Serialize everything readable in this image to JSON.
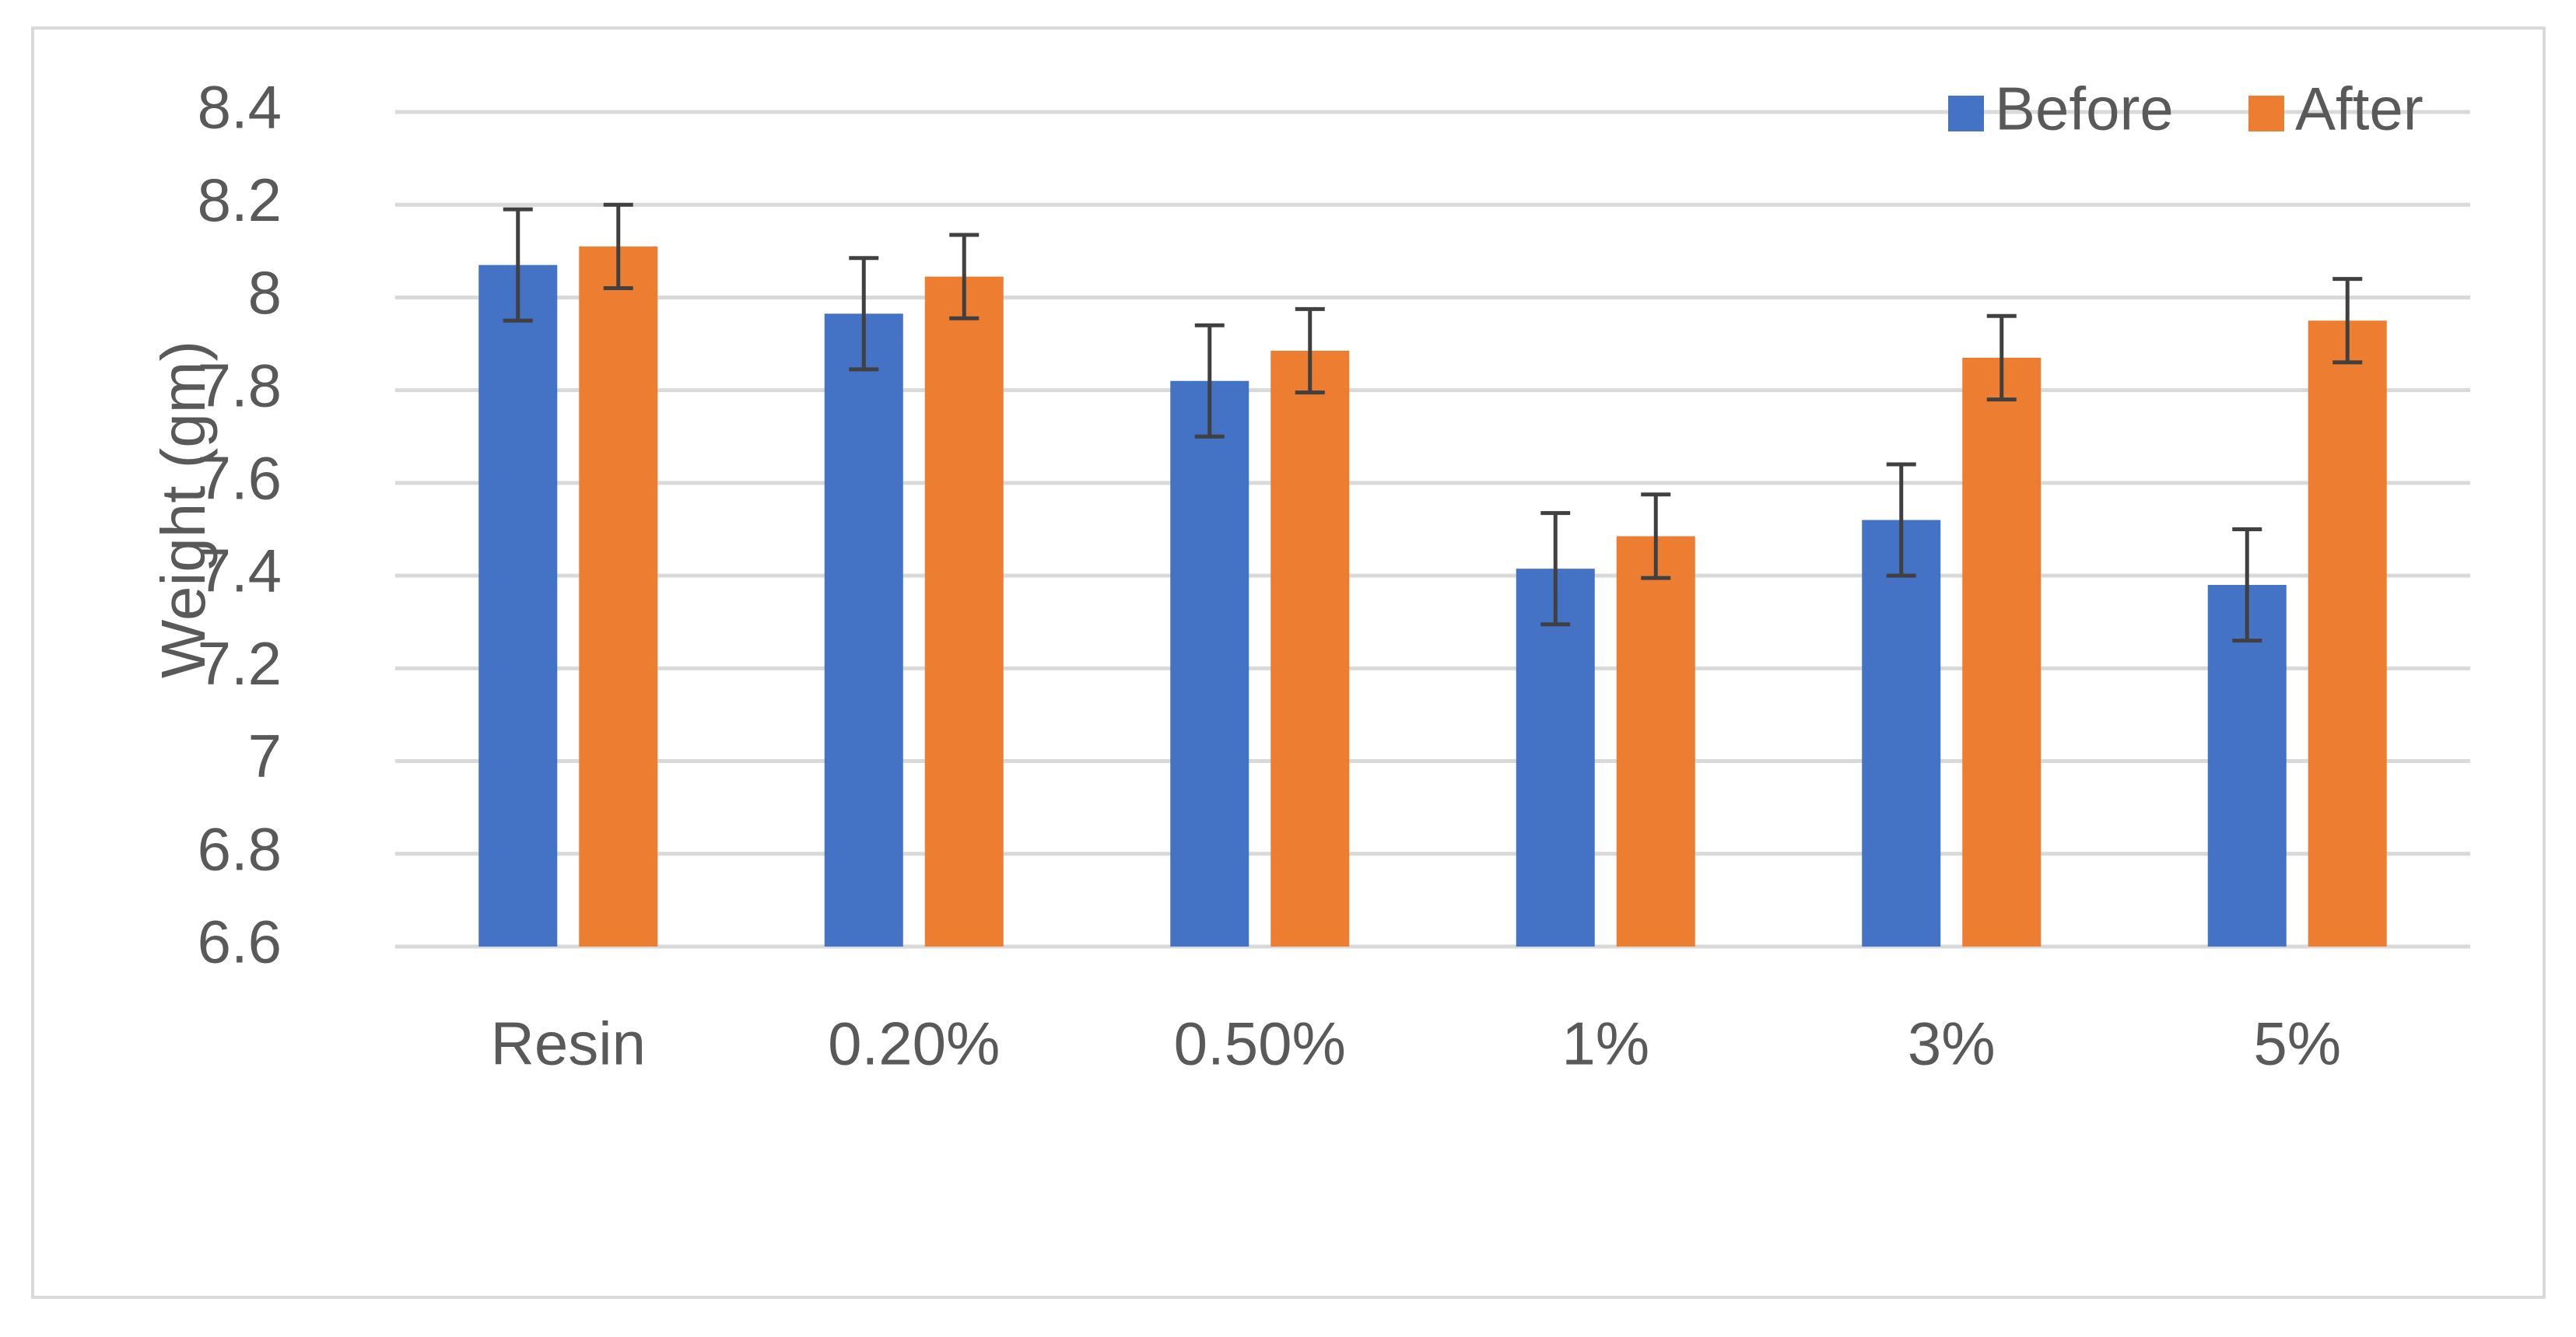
{
  "chart_data": {
    "type": "bar",
    "title": "",
    "xlabel": "",
    "ylabel": "Weight (gm)",
    "ylim": [
      6.6,
      8.4
    ],
    "yticks": [
      "8.4",
      "8.2",
      "8",
      "7.8",
      "7.6",
      "7.4",
      "7.2",
      "7",
      "6.8",
      "6.6"
    ],
    "categories": [
      "Resin",
      "0.20%",
      "0.50%",
      "1%",
      "3%",
      "5%"
    ],
    "series": [
      {
        "name": "Before",
        "color": "#4472c4",
        "values": [
          8.07,
          7.965,
          7.82,
          7.415,
          7.52,
          7.38
        ],
        "errors": [
          0.12,
          0.12,
          0.12,
          0.12,
          0.12,
          0.12
        ]
      },
      {
        "name": "After",
        "color": "#ed7d31",
        "values": [
          8.11,
          8.045,
          7.885,
          7.485,
          7.87,
          7.95
        ],
        "errors": [
          0.09,
          0.09,
          0.09,
          0.09,
          0.09,
          0.09
        ]
      }
    ],
    "grid": true,
    "legend": "top-right",
    "error_bar_color": "#404040",
    "gridline_color": "#d9d9d9"
  }
}
